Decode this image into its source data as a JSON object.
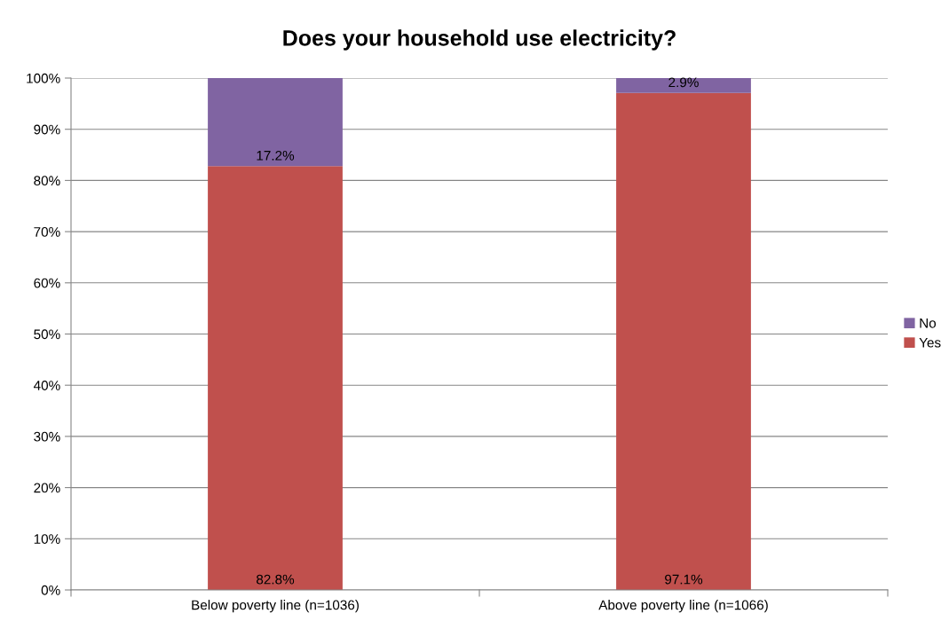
{
  "chart_data": {
    "type": "bar",
    "title": "Does your household use electricity?",
    "categories": [
      "Below poverty line (n=1036)",
      "Above poverty line (n=1066)"
    ],
    "stacked": true,
    "series": [
      {
        "name": "Yes",
        "color": "#c0504d",
        "values": [
          82.8,
          97.1
        ],
        "value_labels": [
          "82.8%",
          "97.1%"
        ]
      },
      {
        "name": "No",
        "color": "#8064a2",
        "values": [
          17.2,
          2.9
        ],
        "value_labels": [
          "17.2%",
          "2.9%"
        ]
      }
    ],
    "ylim": [
      0,
      100
    ],
    "yticks": [
      {
        "value": 0,
        "label": "0%"
      },
      {
        "value": 10,
        "label": "10%"
      },
      {
        "value": 20,
        "label": "20%"
      },
      {
        "value": 30,
        "label": "30%"
      },
      {
        "value": 40,
        "label": "40%"
      },
      {
        "value": 50,
        "label": "50%"
      },
      {
        "value": 60,
        "label": "60%"
      },
      {
        "value": 70,
        "label": "70%"
      },
      {
        "value": 80,
        "label": "80%"
      },
      {
        "value": 90,
        "label": "90%"
      },
      {
        "value": 100,
        "label": "100%"
      }
    ],
    "grid": "y",
    "legend": "right"
  }
}
